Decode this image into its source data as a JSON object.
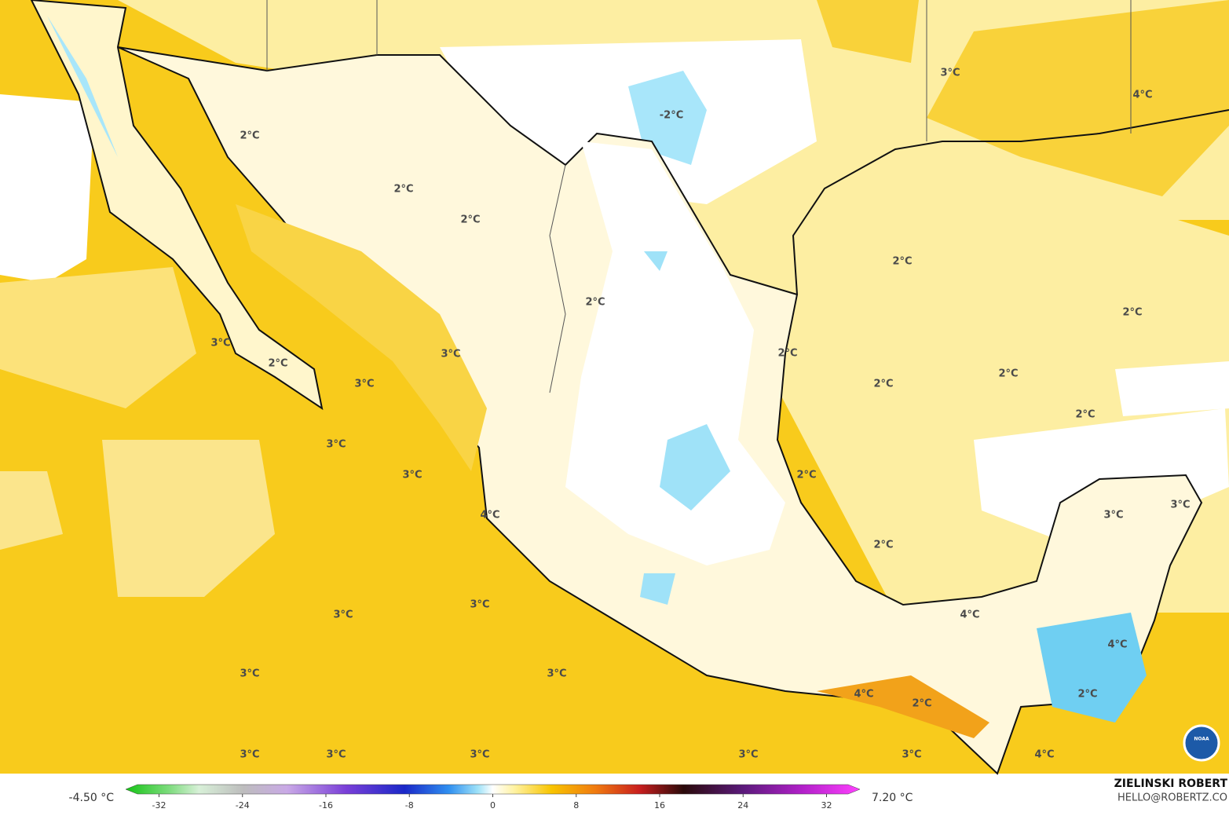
{
  "map": {
    "labels": [
      "3°C",
      "4°C",
      "-2°C",
      "2°C",
      "2°C",
      "2°C",
      "2°C",
      "2°C",
      "2°C",
      "3°C",
      "3°C",
      "2°C",
      "2°C",
      "2°C",
      "2°C",
      "3°C",
      "2°C",
      "3°C",
      "3°C",
      "2°C",
      "3°C",
      "3°C",
      "4°C",
      "2°C",
      "3°C",
      "3°C",
      "4°C",
      "4°C",
      "3°C",
      "3°C",
      "4°C",
      "2°C",
      "2°C",
      "3°C",
      "3°C",
      "3°C",
      "3°C",
      "3°C",
      "4°C"
    ]
  },
  "colorbar": {
    "min_label": "-4.50 °C",
    "max_label": "7.20 °C",
    "range": [
      -35.2,
      35.2
    ],
    "ticks": [
      -32,
      -24,
      -16,
      -8,
      0,
      8,
      16,
      24,
      32
    ]
  },
  "credits": {
    "name": "ZIELINSKI ROBERT",
    "contact": "HELLO@ROBERTZ.CO",
    "logo": "NOAA"
  }
}
